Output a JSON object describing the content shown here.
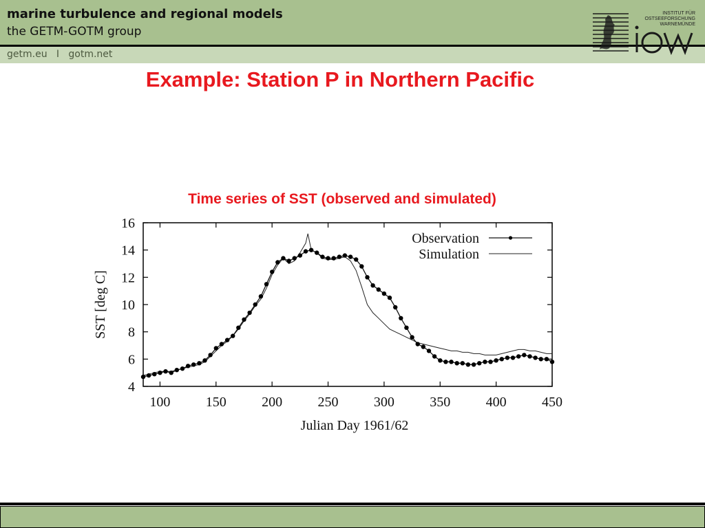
{
  "header": {
    "title": "marine turbulence and regional models",
    "subtitle": "the GETM-GOTM group",
    "links": "getm.eu   I   gotm.net"
  },
  "logo": {
    "institute_lines": [
      "INSTITUT FÜR",
      "OSTSEEFORSCHUNG",
      "WARNEMÜNDE"
    ],
    "wordmark": "iow",
    "color": "#1a1a1a"
  },
  "slide": {
    "title": "Example: Station P in Northern Pacific",
    "chart_caption": "Time series of SST (observed and simulated)"
  },
  "colors": {
    "accent": "#e8191f",
    "header_bg": "#a8c08f",
    "subbar_bg": "#c8d8b8"
  },
  "chart_data": {
    "type": "line",
    "title": "Time series of SST (observed and simulated)",
    "xlabel": "Julian Day 1961/62",
    "ylabel": "SST [deg C]",
    "xlim": [
      85,
      450
    ],
    "ylim": [
      4,
      16
    ],
    "xticks": [
      100,
      150,
      200,
      250,
      300,
      350,
      400,
      450
    ],
    "yticks": [
      4,
      6,
      8,
      10,
      12,
      14,
      16
    ],
    "legend_position": "top-right",
    "grid": false,
    "series": [
      {
        "name": "Observation",
        "marker": "dot",
        "x": [
          85,
          90,
          95,
          100,
          105,
          110,
          115,
          120,
          125,
          130,
          135,
          140,
          145,
          150,
          155,
          160,
          165,
          170,
          175,
          180,
          185,
          190,
          195,
          200,
          205,
          210,
          215,
          220,
          225,
          230,
          235,
          240,
          245,
          250,
          255,
          260,
          265,
          270,
          275,
          280,
          285,
          290,
          295,
          300,
          305,
          310,
          315,
          320,
          325,
          330,
          335,
          340,
          345,
          350,
          355,
          360,
          365,
          370,
          375,
          380,
          385,
          390,
          395,
          400,
          405,
          410,
          415,
          420,
          425,
          430,
          435,
          440,
          445,
          450
        ],
        "y": [
          4.7,
          4.8,
          4.9,
          5.0,
          5.1,
          5.0,
          5.2,
          5.3,
          5.5,
          5.6,
          5.7,
          5.9,
          6.3,
          6.8,
          7.1,
          7.4,
          7.7,
          8.3,
          8.9,
          9.4,
          10.0,
          10.6,
          11.5,
          12.4,
          13.1,
          13.4,
          13.2,
          13.4,
          13.6,
          13.9,
          14.0,
          13.8,
          13.5,
          13.4,
          13.4,
          13.5,
          13.6,
          13.5,
          13.3,
          12.8,
          12.0,
          11.4,
          11.1,
          10.8,
          10.5,
          9.8,
          9.0,
          8.3,
          7.6,
          7.1,
          6.9,
          6.6,
          6.2,
          5.9,
          5.8,
          5.8,
          5.7,
          5.7,
          5.6,
          5.6,
          5.7,
          5.8,
          5.8,
          5.9,
          6.0,
          6.1,
          6.1,
          6.2,
          6.3,
          6.2,
          6.1,
          6.0,
          6.0,
          5.8
        ]
      },
      {
        "name": "Simulation",
        "marker": "none",
        "x": [
          85,
          90,
          95,
          100,
          105,
          110,
          115,
          120,
          125,
          130,
          135,
          140,
          145,
          150,
          155,
          160,
          165,
          170,
          175,
          180,
          185,
          190,
          195,
          200,
          205,
          210,
          215,
          220,
          225,
          230,
          232,
          235,
          240,
          245,
          250,
          255,
          260,
          265,
          270,
          275,
          280,
          285,
          290,
          295,
          300,
          305,
          310,
          315,
          320,
          325,
          330,
          335,
          340,
          345,
          350,
          355,
          360,
          365,
          370,
          375,
          380,
          385,
          390,
          395,
          400,
          405,
          410,
          415,
          420,
          425,
          430,
          435,
          440,
          445,
          450
        ],
        "y": [
          4.8,
          4.9,
          5.0,
          5.1,
          5.1,
          5.1,
          5.2,
          5.3,
          5.4,
          5.5,
          5.6,
          5.8,
          6.2,
          6.6,
          7.0,
          7.3,
          7.7,
          8.2,
          8.8,
          9.3,
          9.9,
          10.4,
          11.2,
          12.2,
          12.9,
          13.4,
          13.0,
          13.2,
          13.8,
          14.5,
          15.2,
          14.0,
          13.8,
          13.4,
          13.3,
          13.3,
          13.4,
          13.5,
          13.2,
          12.5,
          11.3,
          10.0,
          9.4,
          9.0,
          8.6,
          8.2,
          8.0,
          7.8,
          7.6,
          7.4,
          7.2,
          7.1,
          7.0,
          6.9,
          6.8,
          6.7,
          6.6,
          6.6,
          6.5,
          6.5,
          6.4,
          6.4,
          6.3,
          6.3,
          6.3,
          6.4,
          6.5,
          6.6,
          6.7,
          6.7,
          6.6,
          6.6,
          6.5,
          6.4,
          6.4
        ]
      }
    ]
  }
}
